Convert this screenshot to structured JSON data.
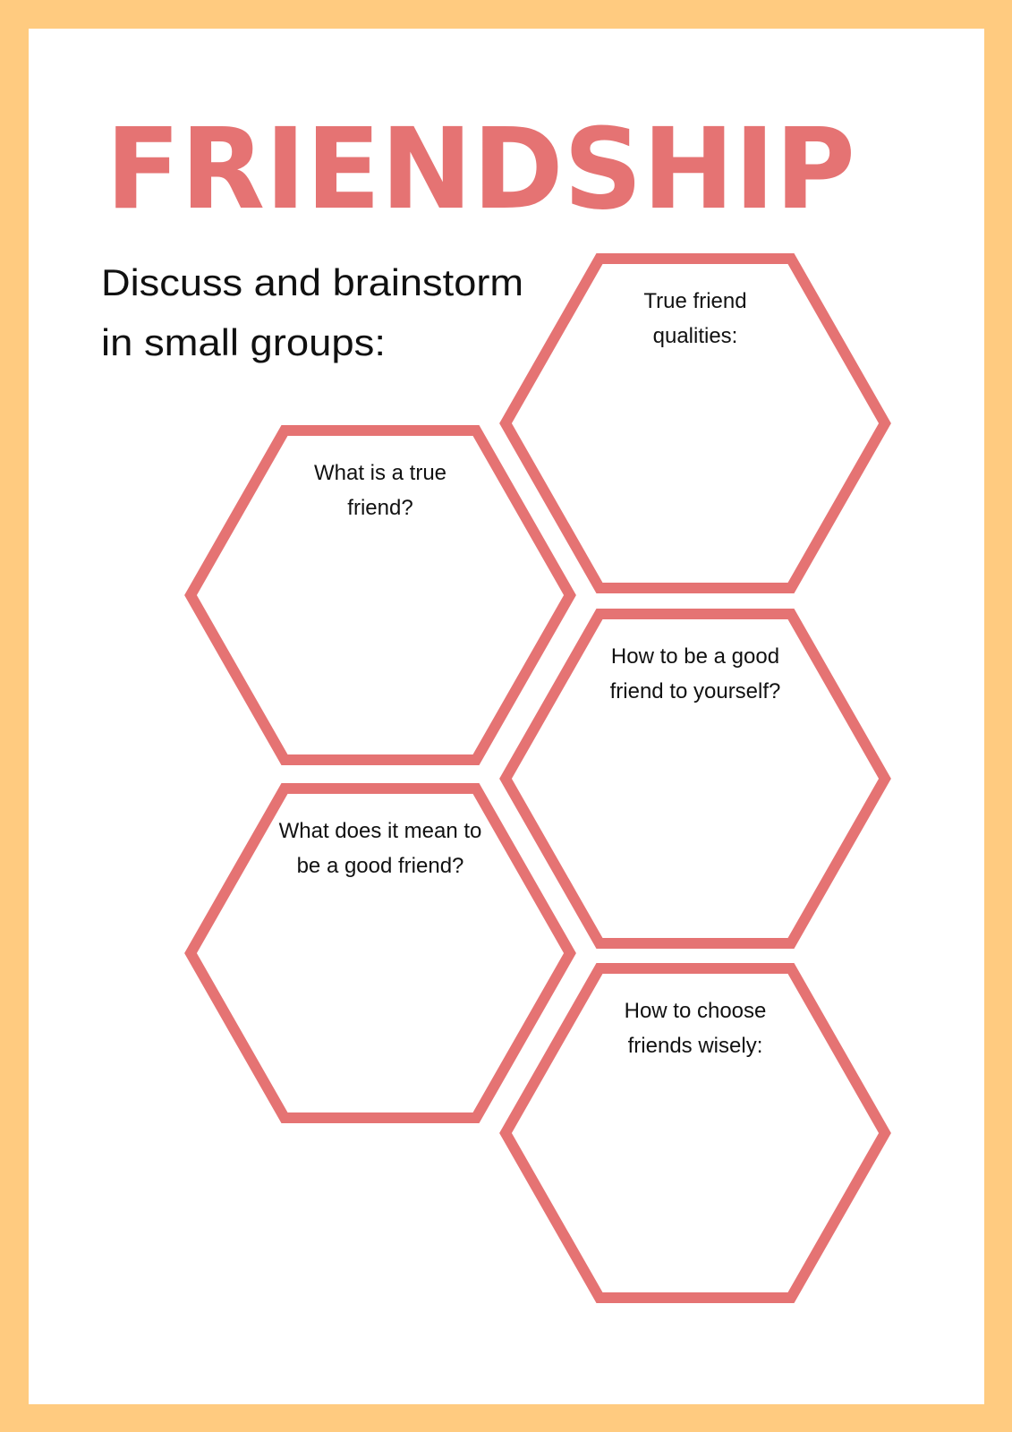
{
  "colors": {
    "border": "#FFCB80",
    "page": "#FFFFFF",
    "accent": "#E57373",
    "text": "#111111"
  },
  "title": "FRIENDSHIP",
  "subtitle": {
    "line1": "Discuss and brainstorm",
    "line2": "in small groups:"
  },
  "hexagons": [
    {
      "line1": "True friend",
      "line2": "qualities:"
    },
    {
      "line1": "What is a true",
      "line2": "friend?"
    },
    {
      "line1": "How to be a good",
      "line2": "friend to yourself?"
    },
    {
      "line1": "What does it mean to",
      "line2": "be a good friend?"
    },
    {
      "line1": "How to choose",
      "line2": "friends wisely:"
    }
  ]
}
